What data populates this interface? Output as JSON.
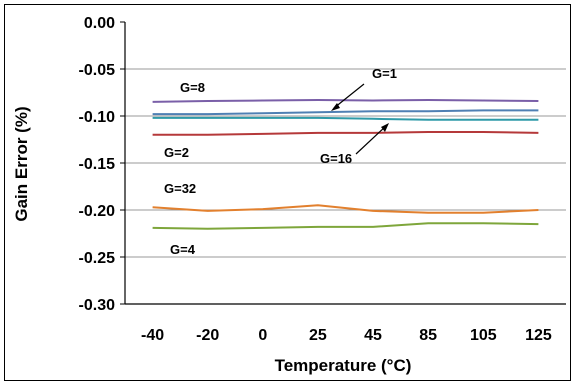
{
  "chart_data": {
    "type": "line",
    "title": "",
    "xlabel": "Temperature (°C)",
    "ylabel": "Gain Error (%)",
    "categories": [
      "-40",
      "-20",
      "0",
      "25",
      "45",
      "85",
      "105",
      "125"
    ],
    "ylim": [
      -0.3,
      0.0
    ],
    "yticks": [
      "0.00",
      "-0.05",
      "-0.10",
      "-0.15",
      "-0.20",
      "-0.25",
      "-0.30"
    ],
    "ytick_values": [
      0.0,
      -0.05,
      -0.1,
      -0.15,
      -0.2,
      -0.25,
      -0.3
    ],
    "grid": "horizontal",
    "legend": "none",
    "series": [
      {
        "name": "G=8",
        "color": "#7a5fa8",
        "values": [
          -0.085,
          -0.084,
          -0.0835,
          -0.083,
          -0.0835,
          -0.083,
          -0.0835,
          -0.084
        ]
      },
      {
        "name": "G=1",
        "color": "#4f7fb3",
        "values": [
          -0.098,
          -0.098,
          -0.097,
          -0.096,
          -0.095,
          -0.095,
          -0.094,
          -0.094
        ]
      },
      {
        "name": "G=16",
        "color": "#2f9aa8",
        "values": [
          -0.102,
          -0.102,
          -0.102,
          -0.102,
          -0.103,
          -0.104,
          -0.104,
          -0.104
        ]
      },
      {
        "name": "G=2",
        "color": "#b5393a",
        "values": [
          -0.12,
          -0.12,
          -0.119,
          -0.118,
          -0.118,
          -0.117,
          -0.117,
          -0.118
        ]
      },
      {
        "name": "G=32",
        "color": "#e2802e",
        "values": [
          -0.197,
          -0.201,
          -0.199,
          -0.195,
          -0.201,
          -0.203,
          -0.203,
          -0.2
        ]
      },
      {
        "name": "G=4",
        "color": "#7ea63b",
        "values": [
          -0.219,
          -0.22,
          -0.219,
          -0.218,
          -0.218,
          -0.214,
          -0.214,
          -0.215
        ]
      }
    ],
    "annotations": [
      "G=8",
      "G=1",
      "G=16",
      "G=2",
      "G=32",
      "G=4"
    ]
  }
}
